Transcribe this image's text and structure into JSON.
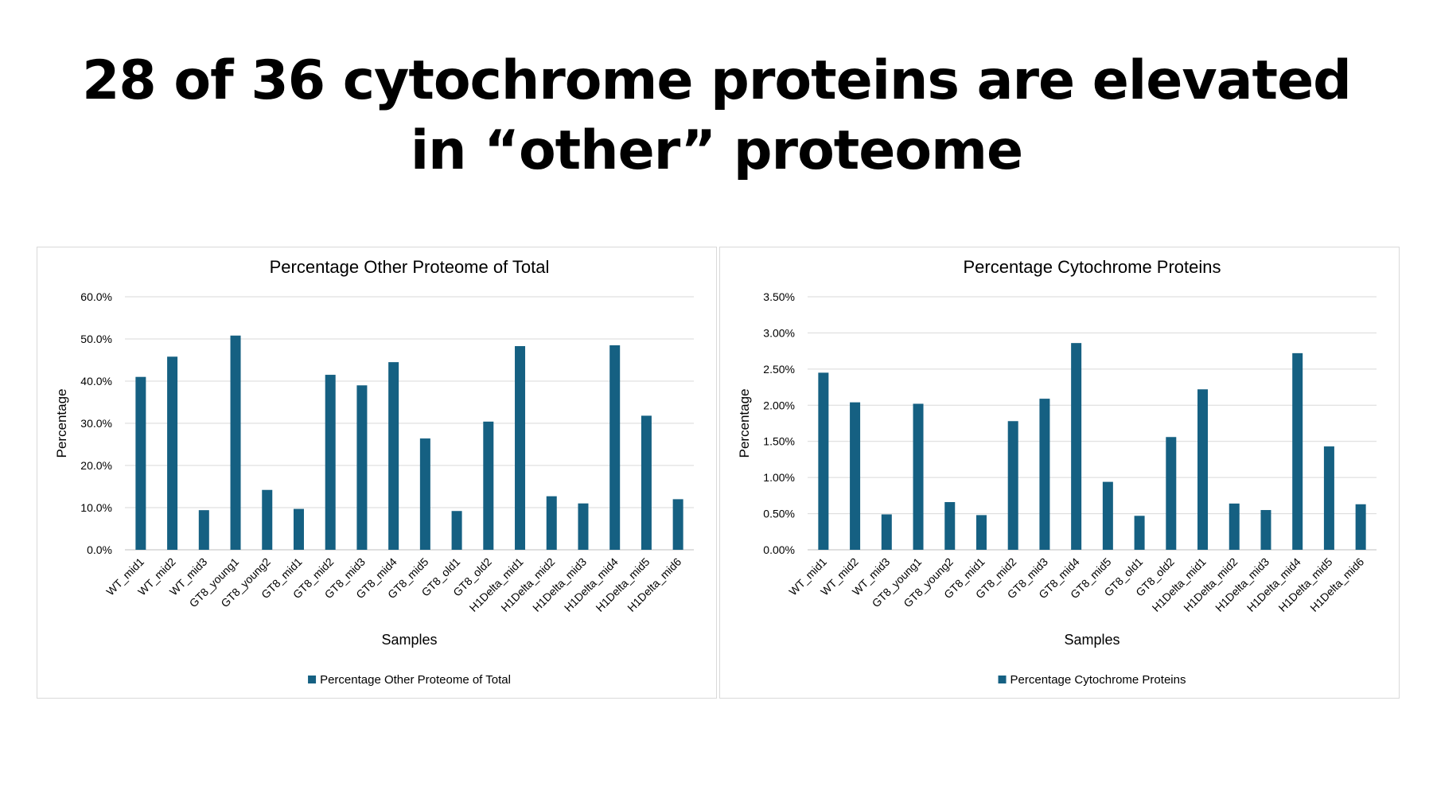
{
  "slide": {
    "title_line1": "28 of 36 cytochrome proteins are elevated",
    "title_line2": "in “other” proteome"
  },
  "chart_data": [
    {
      "type": "bar",
      "title": "Percentage Other Proteome of Total",
      "xlabel": "Samples",
      "ylabel": "Percentage",
      "ylim": [
        0,
        60
      ],
      "y_ticks": [
        "0.0%",
        "10.0%",
        "20.0%",
        "30.0%",
        "40.0%",
        "50.0%",
        "60.0%"
      ],
      "grid": true,
      "legend_position": "bottom",
      "bar_color": "#156082",
      "categories": [
        "WT_mid1",
        "WT_mid2",
        "WT_mid3",
        "GT8_young1",
        "GT8_young2",
        "GT8_mid1",
        "GT8_mid2",
        "GT8_mid3",
        "GT8_mid4",
        "GT8_mid5",
        "GT8_old1",
        "GT8_old2",
        "H1Delta_mid1",
        "H1Delta_mid2",
        "H1Delta_mid3",
        "H1Delta_mid4",
        "H1Delta_mid5",
        "H1Delta_mid6"
      ],
      "series": [
        {
          "name": "Percentage Other Proteome of Total",
          "values": [
            41.0,
            45.8,
            9.4,
            50.8,
            14.2,
            9.7,
            41.5,
            39.0,
            44.5,
            26.4,
            9.2,
            30.4,
            48.3,
            12.7,
            11.0,
            48.5,
            31.8,
            12.0
          ]
        }
      ]
    },
    {
      "type": "bar",
      "title": "Percentage Cytochrome Proteins",
      "xlabel": "Samples",
      "ylabel": "Percentage",
      "ylim": [
        0,
        3.5
      ],
      "y_ticks": [
        "0.00%",
        "0.50%",
        "1.00%",
        "1.50%",
        "2.00%",
        "2.50%",
        "3.00%",
        "3.50%"
      ],
      "grid": true,
      "legend_position": "bottom",
      "bar_color": "#156082",
      "categories": [
        "WT_mid1",
        "WT_mid2",
        "WT_mid3",
        "GT8_young1",
        "GT8_young2",
        "GT8_mid1",
        "GT8_mid2",
        "GT8_mid3",
        "GT8_mid4",
        "GT8_mid5",
        "GT8_old1",
        "GT8_old2",
        "H1Delta_mid1",
        "H1Delta_mid2",
        "H1Delta_mid3",
        "H1Delta_mid4",
        "H1Delta_mid5",
        "H1Delta_mid6"
      ],
      "series": [
        {
          "name": "Percentage Cytochrome Proteins",
          "values": [
            2.45,
            2.04,
            0.49,
            2.02,
            0.66,
            0.48,
            1.78,
            2.09,
            2.86,
            0.94,
            0.47,
            1.56,
            2.22,
            0.64,
            0.55,
            2.72,
            1.43,
            0.63
          ]
        }
      ]
    }
  ]
}
